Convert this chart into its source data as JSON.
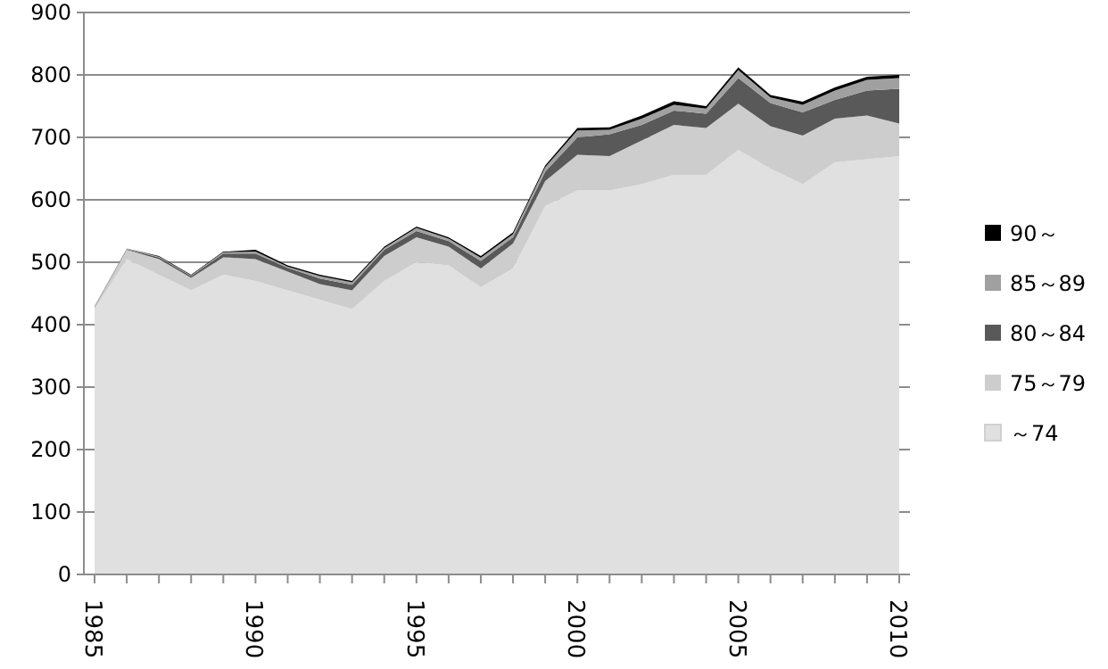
{
  "chart_data": {
    "type": "area",
    "stacked": true,
    "categories": [
      "1985",
      null,
      null,
      null,
      null,
      "1990",
      null,
      null,
      null,
      null,
      "1995",
      null,
      null,
      null,
      null,
      "2000",
      null,
      null,
      null,
      null,
      "2005",
      null,
      null,
      null,
      null,
      "2010"
    ],
    "series": [
      {
        "name": "～74",
        "color": "#e0e0e0",
        "values": [
          425,
          505,
          480,
          455,
          480,
          470,
          455,
          440,
          425,
          470,
          500,
          495,
          460,
          490,
          590,
          615,
          615,
          625,
          640,
          640,
          680,
          650,
          625,
          660,
          665,
          670
        ]
      },
      {
        "name": "75～79",
        "color": "#cdcdcd",
        "values": [
          3,
          15,
          25,
          20,
          28,
          35,
          30,
          25,
          30,
          40,
          40,
          30,
          30,
          40,
          40,
          57,
          55,
          70,
          80,
          75,
          74,
          68,
          78,
          70,
          70,
          52
        ]
      },
      {
        "name": "80～84",
        "color": "#595959",
        "values": [
          1,
          1,
          3,
          3,
          6,
          9,
          6,
          9,
          9,
          10,
          10,
          9,
          12,
          10,
          15,
          28,
          35,
          25,
          23,
          23,
          41,
          37,
          37,
          30,
          40,
          56
        ]
      },
      {
        "name": "85～89",
        "color": "#a0a0a0",
        "values": [
          1,
          1,
          1,
          1,
          2,
          3,
          2,
          4,
          4,
          3,
          5,
          4,
          5,
          5,
          7,
          11,
          7,
          10,
          9,
          8,
          13,
          9,
          12,
          15,
          17,
          17
        ]
      },
      {
        "name": "90～",
        "color": "#000000",
        "values": [
          0,
          0,
          1,
          1,
          1,
          3,
          2,
          2,
          2,
          2,
          2,
          2,
          3,
          3,
          3,
          4,
          4,
          5,
          6,
          4,
          4,
          4,
          5,
          5,
          5,
          5
        ]
      }
    ],
    "ylim": [
      0,
      900
    ],
    "yticks": [
      0,
      100,
      200,
      300,
      400,
      500,
      600,
      700,
      800,
      900
    ],
    "grid": "y",
    "legend": "right"
  }
}
